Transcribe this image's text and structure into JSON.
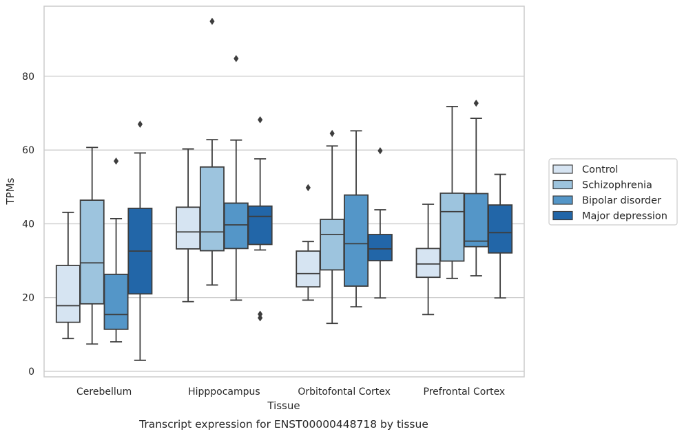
{
  "chart_data": {
    "type": "box",
    "caption": "Transcript expression for ENST00000448718 by tissue",
    "xlabel": "Tissue",
    "ylabel": "TPMs",
    "categories": [
      "Cerebellum",
      "Hipppocampus",
      "Orbitofontal Cortex",
      "Prefrontal Cortex"
    ],
    "ylim": [
      -1.5,
      99
    ],
    "yticks": [
      0,
      20,
      40,
      60,
      80
    ],
    "grid": true,
    "legend_position": "right",
    "series": [
      {
        "name": "Control",
        "color": "#d6e4f2",
        "boxes": [
          {
            "whisker_low": 8.9,
            "q1": 13.3,
            "median": 17.8,
            "q3": 28.7,
            "whisker_high": 43.1,
            "outliers": []
          },
          {
            "whisker_low": 18.9,
            "q1": 33.2,
            "median": 37.8,
            "q3": 44.5,
            "whisker_high": 60.3,
            "outliers": []
          },
          {
            "whisker_low": 19.3,
            "q1": 22.9,
            "median": 26.5,
            "q3": 32.6,
            "whisker_high": 35.2,
            "outliers": [
              49.8
            ]
          },
          {
            "whisker_low": 15.4,
            "q1": 25.5,
            "median": 29.1,
            "q3": 33.3,
            "whisker_high": 45.3,
            "outliers": []
          }
        ]
      },
      {
        "name": "Schizophrenia",
        "color": "#9dc4de",
        "boxes": [
          {
            "whisker_low": 7.4,
            "q1": 18.3,
            "median": 29.4,
            "q3": 46.4,
            "whisker_high": 60.7,
            "outliers": []
          },
          {
            "whisker_low": 23.4,
            "q1": 32.7,
            "median": 37.8,
            "q3": 55.4,
            "whisker_high": 62.8,
            "outliers": [
              94.9
            ]
          },
          {
            "whisker_low": 13.0,
            "q1": 27.5,
            "median": 37.1,
            "q3": 41.2,
            "whisker_high": 61.1,
            "outliers": [
              64.5
            ]
          },
          {
            "whisker_low": 25.2,
            "q1": 29.9,
            "median": 43.3,
            "q3": 48.3,
            "whisker_high": 71.8,
            "outliers": []
          }
        ]
      },
      {
        "name": "Bipolar disorder",
        "color": "#5496c8",
        "boxes": [
          {
            "whisker_low": 8.0,
            "q1": 11.4,
            "median": 15.4,
            "q3": 26.3,
            "whisker_high": 41.4,
            "outliers": [
              57.0
            ]
          },
          {
            "whisker_low": 19.3,
            "q1": 33.3,
            "median": 39.7,
            "q3": 45.6,
            "whisker_high": 62.7,
            "outliers": [
              84.8
            ]
          },
          {
            "whisker_low": 17.5,
            "q1": 23.1,
            "median": 34.6,
            "q3": 47.8,
            "whisker_high": 65.2,
            "outliers": []
          },
          {
            "whisker_low": 25.9,
            "q1": 33.8,
            "median": 35.3,
            "q3": 48.2,
            "whisker_high": 68.6,
            "outliers": [
              72.7
            ]
          }
        ]
      },
      {
        "name": "Major depression",
        "color": "#2266a8",
        "boxes": [
          {
            "whisker_low": 3.0,
            "q1": 21.0,
            "median": 32.6,
            "q3": 44.2,
            "whisker_high": 59.2,
            "outliers": [
              67.0
            ]
          },
          {
            "whisker_low": 32.9,
            "q1": 34.4,
            "median": 42.0,
            "q3": 44.8,
            "whisker_high": 57.6,
            "outliers": [
              68.2,
              15.5,
              14.5
            ]
          },
          {
            "whisker_low": 19.9,
            "q1": 30.0,
            "median": 33.2,
            "q3": 37.1,
            "whisker_high": 43.8,
            "outliers": [
              59.8
            ]
          },
          {
            "whisker_low": 19.9,
            "q1": 32.1,
            "median": 37.6,
            "q3": 45.1,
            "whisker_high": 53.4,
            "outliers": []
          }
        ]
      }
    ]
  }
}
